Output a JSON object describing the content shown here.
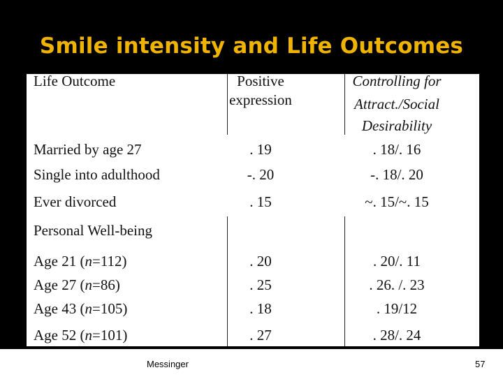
{
  "slide": {
    "title": "Smile intensity and Life Outcomes",
    "footer_author": "Messinger",
    "page_number": "57"
  },
  "table": {
    "headers": {
      "col1": "Life Outcome",
      "col2_line1": "Positive",
      "col2_line2": "expression",
      "col3_line1": "Controlling for",
      "col3_line2": "Attract./Social",
      "col3_line3": "Desirability"
    },
    "rows": [
      {
        "label": "Married by age 27",
        "positive": ". 19",
        "controlled": ". 18/. 16"
      },
      {
        "label": "Single into adulthood",
        "positive": "-. 20",
        "controlled": "-. 18/. 20"
      },
      {
        "label": "Ever divorced",
        "positive": ". 15",
        "controlled": "~. 15/~. 15"
      }
    ],
    "section_label": "Personal Well-being",
    "wellbeing_rows": [
      {
        "age": "Age 21 (",
        "n": "n",
        "count": "=112)",
        "positive": ". 20",
        "controlled": ". 20/. 11"
      },
      {
        "age": "Age 27 (",
        "n": "n",
        "count": "=86)",
        "positive": ". 25",
        "controlled": ". 26. /. 23"
      },
      {
        "age": "Age 43 (",
        "n": "n",
        "count": "=105)",
        "positive": ". 18",
        "controlled": ". 19/12"
      },
      {
        "age": "Age 52 (",
        "n": "n",
        "count": "=101)",
        "positive": ". 27",
        "controlled": ". 28/. 24"
      }
    ]
  }
}
